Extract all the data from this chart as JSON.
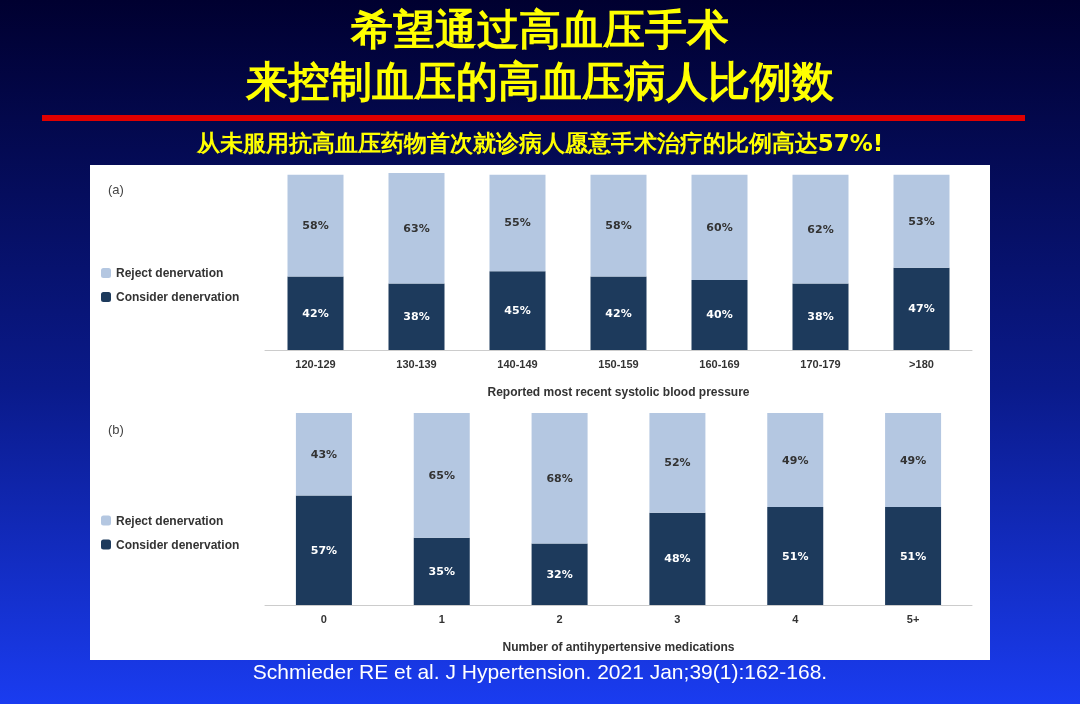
{
  "chart_data": [
    {
      "type": "bar",
      "title": "希望通过高血压手术来控制血压的高血压病人比例数",
      "subtitle": "从未服用抗高血压药物首次就诊病人愿意手术治疗的比例高达57%!",
      "xlabel": "Reported most recent systolic blood pressure",
      "annotations": [
        "(a)"
      ],
      "categories": [
        "120-129",
        "130-139",
        "140-149",
        "150-159",
        "160-169",
        "170-179",
        ">180"
      ],
      "stacked": true,
      "ylim": [
        0,
        101
      ],
      "tick_labels": "x",
      "legend": "left",
      "series": [
        {
          "name": "Consider denervation",
          "color": "#1d3a5c",
          "values": [
            42,
            38,
            45,
            42,
            40,
            38,
            47
          ],
          "value_labels": [
            "42%",
            "38%",
            "45%",
            "42%",
            "40%",
            "38%",
            "47%"
          ]
        },
        {
          "name": "Reject denervation",
          "color": "#b4c7e1",
          "values": [
            58,
            63,
            55,
            58,
            60,
            62,
            53
          ],
          "value_labels": [
            "58%",
            "63%",
            "55%",
            "58%",
            "60%",
            "62%",
            "53%"
          ]
        }
      ]
    },
    {
      "type": "bar",
      "xlabel": "Number of antihypertensive medications",
      "annotations": [
        "(b)",
        "Schmieder RE et al. J Hypertension. 2021 Jan;39(1):162-168."
      ],
      "categories": [
        "0",
        "1",
        "2",
        "3",
        "4",
        "5+"
      ],
      "stacked": true,
      "ylim": [
        0,
        100
      ],
      "tick_labels": "x",
      "legend": "left",
      "series": [
        {
          "name": "Consider denervation",
          "color": "#1d3a5c",
          "values": [
            57,
            35,
            32,
            48,
            51,
            51
          ],
          "value_labels": [
            "57%",
            "35%",
            "32%",
            "48%",
            "51%",
            "51%"
          ]
        },
        {
          "name": "Reject denervation",
          "color": "#b4c7e1",
          "values": [
            43,
            65,
            68,
            52,
            49,
            49
          ],
          "value_labels": [
            "43%",
            "65%",
            "68%",
            "52%",
            "49%",
            "49%"
          ]
        }
      ]
    }
  ]
}
